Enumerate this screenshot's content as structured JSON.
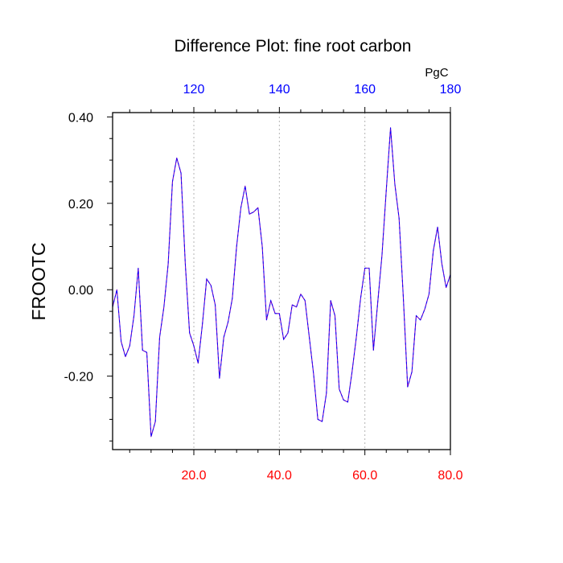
{
  "chart_data": {
    "type": "line",
    "title": "Difference Plot: fine root carbon",
    "ylabel": "FROOTC",
    "top_axis_unit": "PgC",
    "xlim": [
      1,
      80
    ],
    "ylim": [
      -0.37,
      0.41
    ],
    "grid": "vertical-dotted-at-top-ticks",
    "left_ticks": [
      {
        "value": 0.4,
        "label": "0.40"
      },
      {
        "value": 0.2,
        "label": "0.20"
      },
      {
        "value": 0.0,
        "label": "0.00"
      },
      {
        "value": -0.2,
        "label": "-0.20"
      }
    ],
    "bottom_ticks": [
      {
        "value": 20,
        "label": "20.0"
      },
      {
        "value": 40,
        "label": "40.0"
      },
      {
        "value": 60,
        "label": "60.0"
      },
      {
        "value": 80,
        "label": "80.0"
      }
    ],
    "top_ticks": [
      {
        "value": 20,
        "label": "120"
      },
      {
        "value": 40,
        "label": "140"
      },
      {
        "value": 60,
        "label": "160"
      },
      {
        "value": 80,
        "label": "180"
      }
    ],
    "series": [
      {
        "x": [
          1,
          2,
          3,
          4,
          5,
          6,
          7,
          8,
          9,
          10,
          11,
          12,
          13,
          14,
          15,
          16,
          17,
          18,
          19,
          20,
          21,
          22,
          23,
          24,
          25,
          26,
          27,
          28,
          29,
          30,
          31,
          32,
          33,
          34,
          35,
          36,
          37,
          38,
          39,
          40,
          41,
          42,
          43,
          44,
          45,
          46,
          47,
          48,
          49,
          50,
          51,
          52,
          53,
          54,
          55,
          56,
          57,
          58,
          59,
          60,
          61,
          62,
          63,
          64,
          65,
          66,
          67,
          68,
          69,
          70,
          71,
          72,
          73,
          74,
          75,
          76,
          77,
          78,
          79,
          80
        ],
        "values": [
          -0.04,
          0.0,
          -0.12,
          -0.155,
          -0.13,
          -0.06,
          0.05,
          -0.14,
          -0.145,
          -0.34,
          -0.305,
          -0.11,
          -0.04,
          0.06,
          0.25,
          0.305,
          0.27,
          0.06,
          -0.1,
          -0.13,
          -0.17,
          -0.08,
          0.025,
          0.01,
          -0.035,
          -0.205,
          -0.11,
          -0.075,
          -0.02,
          0.1,
          0.19,
          0.24,
          0.175,
          0.18,
          0.19,
          0.1,
          -0.07,
          -0.025,
          -0.055,
          -0.055,
          -0.115,
          -0.1,
          -0.035,
          -0.04,
          -0.01,
          -0.025,
          -0.11,
          -0.195,
          -0.3,
          -0.305,
          -0.24,
          -0.025,
          -0.06,
          -0.23,
          -0.255,
          -0.26,
          -0.19,
          -0.11,
          -0.02,
          0.05,
          0.05,
          -0.14,
          -0.03,
          0.08,
          0.23,
          0.375,
          0.245,
          0.165,
          -0.02,
          -0.225,
          -0.19,
          -0.06,
          -0.07,
          -0.045,
          -0.01,
          0.09,
          0.145,
          0.06,
          0.005,
          0.035
        ],
        "color": "#6a00c8",
        "dash_color": "#0000ff"
      }
    ]
  },
  "colors": {
    "bottom_tick_labels": "#ff0000",
    "top_tick_labels": "#0000ff",
    "axis": "#000000",
    "grid": "#b4b4b4"
  }
}
